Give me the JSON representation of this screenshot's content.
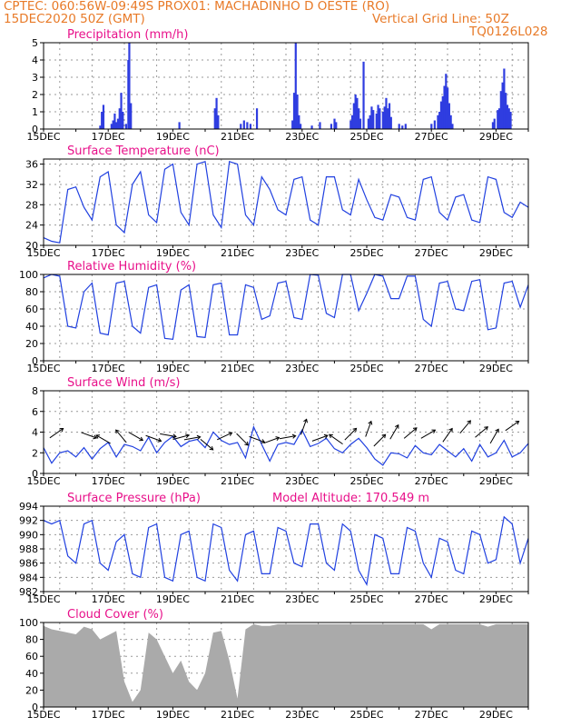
{
  "header": {
    "line1": "CPTEC:   060:56W-09:49S   PROX01: MACHADINHO D OESTE (RO)",
    "date": "15DEC2020 50Z (GMT)",
    "grid_note": "Vertical Grid Line: 50Z",
    "code": "TQ0126L028"
  },
  "colors": {
    "header": "#e87a28",
    "title": "#e8108a",
    "line": "#2040e0",
    "bar": "#2f3de0",
    "cloud": "#aaaaaa",
    "wind_arrow": "#000000"
  },
  "chart_data": [
    {
      "type": "bar",
      "title": "Precipitation (mm/h)",
      "ylim": [
        0,
        5
      ],
      "yticks": [
        0,
        1,
        2,
        3,
        4,
        5
      ],
      "xticks": [
        "15DEC",
        "17DEC",
        "19DEC",
        "21DEC",
        "23DEC",
        "25DEC",
        "27DEC",
        "29DEC"
      ],
      "days": 15.0,
      "points": [
        [
          1.75,
          0.2
        ],
        [
          1.8,
          1.0
        ],
        [
          1.85,
          1.4
        ],
        [
          2.1,
          0.3
        ],
        [
          2.15,
          0.5
        ],
        [
          2.2,
          0.9
        ],
        [
          2.25,
          0.4
        ],
        [
          2.3,
          0.6
        ],
        [
          2.35,
          1.2
        ],
        [
          2.4,
          2.1
        ],
        [
          2.45,
          1.0
        ],
        [
          2.55,
          0.3
        ],
        [
          2.62,
          4.0
        ],
        [
          2.65,
          5.0
        ],
        [
          2.7,
          1.5
        ],
        [
          4.2,
          0.4
        ],
        [
          5.3,
          1.2
        ],
        [
          5.35,
          1.8
        ],
        [
          5.4,
          0.8
        ],
        [
          6.1,
          0.3
        ],
        [
          6.2,
          0.5
        ],
        [
          6.3,
          0.4
        ],
        [
          6.4,
          0.3
        ],
        [
          6.6,
          1.2
        ],
        [
          7.7,
          0.5
        ],
        [
          7.75,
          2.1
        ],
        [
          7.8,
          5.0
        ],
        [
          7.85,
          2.0
        ],
        [
          7.9,
          0.8
        ],
        [
          7.95,
          0.3
        ],
        [
          8.3,
          0.2
        ],
        [
          8.55,
          0.4
        ],
        [
          8.9,
          0.3
        ],
        [
          9.0,
          0.6
        ],
        [
          9.05,
          0.4
        ],
        [
          9.5,
          0.5
        ],
        [
          9.55,
          0.8
        ],
        [
          9.6,
          1.5
        ],
        [
          9.65,
          2.0
        ],
        [
          9.7,
          1.8
        ],
        [
          9.75,
          1.2
        ],
        [
          9.8,
          0.6
        ],
        [
          9.9,
          3.9
        ],
        [
          10.05,
          0.6
        ],
        [
          10.1,
          0.8
        ],
        [
          10.15,
          1.3
        ],
        [
          10.2,
          1.1
        ],
        [
          10.3,
          0.9
        ],
        [
          10.35,
          1.4
        ],
        [
          10.4,
          1.2
        ],
        [
          10.5,
          1.0
        ],
        [
          10.55,
          1.3
        ],
        [
          10.6,
          1.8
        ],
        [
          10.65,
          1.2
        ],
        [
          10.7,
          1.5
        ],
        [
          10.75,
          0.7
        ],
        [
          11.0,
          0.3
        ],
        [
          11.1,
          0.2
        ],
        [
          11.2,
          0.3
        ],
        [
          12.0,
          0.3
        ],
        [
          12.1,
          0.5
        ],
        [
          12.2,
          0.8
        ],
        [
          12.25,
          1.0
        ],
        [
          12.3,
          1.6
        ],
        [
          12.35,
          1.9
        ],
        [
          12.4,
          2.5
        ],
        [
          12.45,
          3.2
        ],
        [
          12.5,
          2.4
        ],
        [
          12.55,
          1.5
        ],
        [
          12.6,
          0.8
        ],
        [
          12.65,
          0.3
        ],
        [
          13.9,
          0.4
        ],
        [
          13.95,
          0.6
        ],
        [
          14.05,
          1.1
        ],
        [
          14.1,
          1.2
        ],
        [
          14.15,
          2.2
        ],
        [
          14.2,
          2.7
        ],
        [
          14.25,
          3.5
        ],
        [
          14.3,
          2.1
        ],
        [
          14.35,
          1.4
        ],
        [
          14.4,
          1.2
        ],
        [
          14.45,
          1.0
        ]
      ]
    },
    {
      "type": "line",
      "title": "Surface Temperature (nC)",
      "ylim": [
        20,
        37
      ],
      "yticks": [
        20,
        24,
        28,
        32,
        36
      ],
      "xticks": [
        "15DEC",
        "17DEC",
        "19DEC",
        "21DEC",
        "23DEC",
        "25DEC",
        "27DEC",
        "29DEC"
      ],
      "x": [
        0,
        0.25,
        0.5,
        0.75,
        1.0,
        1.25,
        1.5,
        1.75,
        2.0,
        2.25,
        2.5,
        2.75,
        3.0,
        3.25,
        3.5,
        3.75,
        4.0,
        4.25,
        4.5,
        4.75,
        5.0,
        5.25,
        5.5,
        5.75,
        6.0,
        6.25,
        6.5,
        6.75,
        7.0,
        7.25,
        7.5,
        7.75,
        8.0,
        8.25,
        8.5,
        8.75,
        9.0,
        9.25,
        9.5,
        9.75,
        10.0,
        10.25,
        10.5,
        10.75,
        11.0,
        11.25,
        11.5,
        11.75,
        12.0,
        12.25,
        12.5,
        12.75,
        13.0,
        13.25,
        13.5,
        13.75,
        14.0,
        14.25,
        14.5,
        14.75,
        15.0
      ],
      "y": [
        21.5,
        20.8,
        20.5,
        31.0,
        31.5,
        27.5,
        25.0,
        33.5,
        34.5,
        24.0,
        22.5,
        32.0,
        34.5,
        26.0,
        24.5,
        35.0,
        36.0,
        26.5,
        24.0,
        36.0,
        36.5,
        26.0,
        23.5,
        36.5,
        36.0,
        26.0,
        24.0,
        33.5,
        31.0,
        27.0,
        26.0,
        33.0,
        33.5,
        25.0,
        24.0,
        33.5,
        33.5,
        27.0,
        26.0,
        33.0,
        29.0,
        25.5,
        25.0,
        30.0,
        29.5,
        25.5,
        25.0,
        33.0,
        33.5,
        26.5,
        25.0,
        29.5,
        30.0,
        25.0,
        24.5,
        33.5,
        33.0,
        26.5,
        25.5,
        28.5,
        27.5
      ]
    },
    {
      "type": "line",
      "title": "Relative Humidity (%)",
      "ylim": [
        0,
        100
      ],
      "yticks": [
        0,
        20,
        40,
        60,
        80,
        100
      ],
      "xticks": [
        "15DEC",
        "17DEC",
        "19DEC",
        "21DEC",
        "23DEC",
        "25DEC",
        "27DEC",
        "29DEC"
      ],
      "x": [
        0,
        0.25,
        0.5,
        0.75,
        1.0,
        1.25,
        1.5,
        1.75,
        2.0,
        2.25,
        2.5,
        2.75,
        3.0,
        3.25,
        3.5,
        3.75,
        4.0,
        4.25,
        4.5,
        4.75,
        5.0,
        5.25,
        5.5,
        5.75,
        6.0,
        6.25,
        6.5,
        6.75,
        7.0,
        7.25,
        7.5,
        7.75,
        8.0,
        8.25,
        8.5,
        8.75,
        9.0,
        9.25,
        9.5,
        9.75,
        10.0,
        10.25,
        10.5,
        10.75,
        11.0,
        11.25,
        11.5,
        11.75,
        12.0,
        12.25,
        12.5,
        12.75,
        13.0,
        13.25,
        13.5,
        13.75,
        14.0,
        14.25,
        14.5,
        14.75,
        15.0
      ],
      "y": [
        96,
        100,
        98,
        40,
        38,
        80,
        90,
        32,
        30,
        90,
        92,
        40,
        32,
        85,
        88,
        26,
        25,
        82,
        88,
        28,
        27,
        88,
        90,
        30,
        30,
        88,
        85,
        48,
        52,
        90,
        92,
        50,
        48,
        100,
        99,
        55,
        50,
        100,
        100,
        58,
        78,
        100,
        98,
        72,
        72,
        98,
        98,
        48,
        40,
        90,
        92,
        60,
        58,
        92,
        94,
        36,
        38,
        90,
        92,
        62,
        88
      ]
    },
    {
      "type": "line",
      "title": "Surface Wind (m/s)",
      "ylim": [
        0,
        8
      ],
      "yticks": [
        0,
        2,
        4,
        6,
        8
      ],
      "xticks": [
        "15DEC",
        "17DEC",
        "19DEC",
        "21DEC",
        "23DEC",
        "25DEC",
        "27DEC",
        "29DEC"
      ],
      "x": [
        0,
        0.25,
        0.5,
        0.75,
        1.0,
        1.25,
        1.5,
        1.75,
        2.0,
        2.25,
        2.5,
        2.75,
        3.0,
        3.25,
        3.5,
        3.75,
        4.0,
        4.25,
        4.5,
        4.75,
        5.0,
        5.25,
        5.5,
        5.75,
        6.0,
        6.25,
        6.5,
        6.75,
        7.0,
        7.25,
        7.5,
        7.75,
        8.0,
        8.25,
        8.5,
        8.75,
        9.0,
        9.25,
        9.5,
        9.75,
        10.0,
        10.25,
        10.5,
        10.75,
        11.0,
        11.25,
        11.5,
        11.75,
        12.0,
        12.25,
        12.5,
        12.75,
        13.0,
        13.25,
        13.5,
        13.75,
        14.0,
        14.25,
        14.5,
        14.75,
        15.0
      ],
      "y": [
        2.5,
        1.0,
        2.0,
        2.2,
        1.6,
        2.5,
        1.4,
        2.4,
        3.0,
        1.6,
        2.8,
        2.6,
        2.2,
        3.5,
        2.0,
        3.0,
        3.6,
        2.6,
        3.1,
        3.3,
        2.5,
        4.0,
        3.2,
        2.8,
        3.0,
        1.5,
        4.5,
        2.8,
        1.2,
        2.8,
        3.0,
        2.8,
        4.2,
        2.6,
        2.9,
        3.4,
        2.4,
        2.0,
        2.8,
        3.4,
        2.5,
        1.4,
        0.8,
        2.0,
        1.9,
        1.5,
        2.7,
        2.0,
        1.8,
        2.8,
        2.2,
        1.6,
        2.4,
        1.2,
        2.8,
        1.6,
        2.0,
        3.2,
        1.6,
        2.0,
        2.9
      ],
      "arrows": [
        {
          "x": 0.4,
          "y": 3.9,
          "dir": -35
        },
        {
          "x": 1.4,
          "y": 3.7,
          "dir": 20
        },
        {
          "x": 1.85,
          "y": 3.3,
          "dir": 210
        },
        {
          "x": 2.4,
          "y": 3.6,
          "dir": 230
        },
        {
          "x": 2.85,
          "y": 3.6,
          "dir": 30
        },
        {
          "x": 3.4,
          "y": 3.4,
          "dir": 20
        },
        {
          "x": 3.85,
          "y": 3.7,
          "dir": 10
        },
        {
          "x": 4.25,
          "y": 3.5,
          "dir": -15
        },
        {
          "x": 4.6,
          "y": 3.4,
          "dir": -10
        },
        {
          "x": 5.05,
          "y": 2.8,
          "dir": 40
        },
        {
          "x": 5.6,
          "y": 3.6,
          "dir": -25
        },
        {
          "x": 6.15,
          "y": 3.3,
          "dir": 45
        },
        {
          "x": 6.6,
          "y": 3.3,
          "dir": 20
        },
        {
          "x": 7.05,
          "y": 3.2,
          "dir": -20
        },
        {
          "x": 7.55,
          "y": 3.5,
          "dir": -10
        },
        {
          "x": 8.05,
          "y": 4.5,
          "dir": -70
        },
        {
          "x": 8.55,
          "y": 3.4,
          "dir": -20
        },
        {
          "x": 9.05,
          "y": 3.3,
          "dir": 215
        },
        {
          "x": 9.5,
          "y": 3.8,
          "dir": -45
        },
        {
          "x": 10.05,
          "y": 4.3,
          "dir": -70
        },
        {
          "x": 10.4,
          "y": 3.2,
          "dir": -45
        },
        {
          "x": 10.85,
          "y": 4.0,
          "dir": -60
        },
        {
          "x": 11.35,
          "y": 3.9,
          "dir": -40
        },
        {
          "x": 11.9,
          "y": 3.8,
          "dir": -30
        },
        {
          "x": 12.5,
          "y": 3.7,
          "dir": -55
        },
        {
          "x": 13.05,
          "y": 4.5,
          "dir": -50
        },
        {
          "x": 13.55,
          "y": 4.0,
          "dir": -40
        },
        {
          "x": 13.95,
          "y": 3.6,
          "dir": -60
        },
        {
          "x": 14.5,
          "y": 4.6,
          "dir": -35
        }
      ]
    },
    {
      "type": "line",
      "title": "Surface Pressure (hPa)",
      "ylim": [
        982,
        994
      ],
      "yticks": [
        982,
        984,
        986,
        988,
        990,
        992,
        994
      ],
      "annotation": "Model Altitude: 170.549  m",
      "xticks": [
        "15DEC",
        "17DEC",
        "19DEC",
        "21DEC",
        "23DEC",
        "25DEC",
        "27DEC",
        "29DEC"
      ],
      "x": [
        0,
        0.25,
        0.5,
        0.75,
        1.0,
        1.25,
        1.5,
        1.75,
        2.0,
        2.25,
        2.5,
        2.75,
        3.0,
        3.25,
        3.5,
        3.75,
        4.0,
        4.25,
        4.5,
        4.75,
        5.0,
        5.25,
        5.5,
        5.75,
        6.0,
        6.25,
        6.5,
        6.75,
        7.0,
        7.25,
        7.5,
        7.75,
        8.0,
        8.25,
        8.5,
        8.75,
        9.0,
        9.25,
        9.5,
        9.75,
        10.0,
        10.25,
        10.5,
        10.75,
        11.0,
        11.25,
        11.5,
        11.75,
        12.0,
        12.25,
        12.5,
        12.75,
        13.0,
        13.25,
        13.5,
        13.75,
        14.0,
        14.25,
        14.5,
        14.75,
        15.0
      ],
      "y": [
        992,
        991.5,
        992,
        987,
        986,
        991.5,
        992,
        986,
        985,
        989,
        990,
        984.5,
        984,
        991,
        991.5,
        984,
        983.5,
        990,
        990.5,
        984,
        983.5,
        991.5,
        991,
        985,
        983.5,
        990,
        990.5,
        984.5,
        984.5,
        991,
        990.5,
        986,
        985.5,
        991.5,
        991.5,
        986,
        985,
        991.5,
        990.5,
        985,
        983,
        990,
        989.5,
        984.5,
        984.5,
        991,
        990.5,
        986,
        984,
        989.5,
        989,
        985,
        984.5,
        990.5,
        990,
        986,
        986.5,
        992.5,
        991.5,
        986,
        989.5
      ]
    },
    {
      "type": "area",
      "title": "Cloud Cover (%)",
      "ylim": [
        0,
        100
      ],
      "yticks": [
        0,
        20,
        40,
        60,
        80,
        100
      ],
      "xticks": [
        "15DEC",
        "17DEC",
        "19DEC",
        "21DEC",
        "23DEC",
        "25DEC",
        "27DEC",
        "29DEC"
      ],
      "x": [
        0,
        0.25,
        0.5,
        0.75,
        1.0,
        1.25,
        1.5,
        1.75,
        2.0,
        2.25,
        2.5,
        2.75,
        3.0,
        3.25,
        3.5,
        3.75,
        4.0,
        4.25,
        4.5,
        4.75,
        5.0,
        5.25,
        5.5,
        5.75,
        6.0,
        6.25,
        6.5,
        6.75,
        7.0,
        7.25,
        7.5,
        7.75,
        8.0,
        8.25,
        8.5,
        8.75,
        9.0,
        9.25,
        9.5,
        9.75,
        10.0,
        10.25,
        10.5,
        10.75,
        11.0,
        11.25,
        11.5,
        11.75,
        12.0,
        12.25,
        12.5,
        12.75,
        13.0,
        13.25,
        13.5,
        13.75,
        14.0,
        14.25,
        14.5,
        14.75,
        15.0
      ],
      "y": [
        96,
        92,
        90,
        88,
        86,
        95,
        92,
        80,
        85,
        90,
        30,
        6,
        20,
        88,
        80,
        60,
        40,
        55,
        30,
        20,
        40,
        88,
        90,
        55,
        10,
        92,
        98,
        96,
        96,
        98,
        98,
        98,
        98,
        98,
        98,
        98,
        98,
        98,
        98,
        98,
        98,
        98,
        98,
        98,
        98,
        98,
        98,
        98,
        92,
        98,
        98,
        98,
        98,
        98,
        98,
        95,
        98,
        98,
        98,
        98,
        98
      ]
    }
  ]
}
